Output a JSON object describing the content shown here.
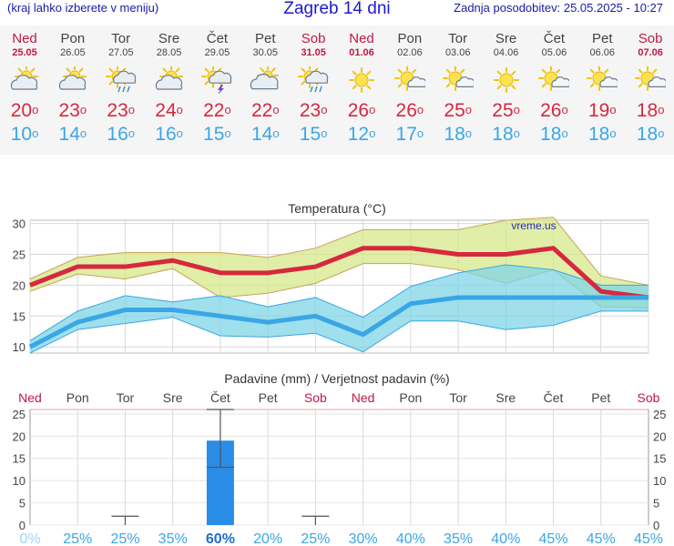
{
  "header": {
    "hint": "(kraj lahko izberete v meniju)",
    "title": "Zagreb 14 dni",
    "updated": "Zadnja posodobitev: 25.05.2025 - 10:27"
  },
  "days": [
    {
      "name": "Ned",
      "date": "25.05",
      "weekend": true,
      "icon": "sun-cloud-icon",
      "tmax": "20",
      "tmin": "10"
    },
    {
      "name": "Pon",
      "date": "26.05",
      "weekend": false,
      "icon": "sun-cloud-icon",
      "tmax": "23",
      "tmin": "14"
    },
    {
      "name": "Tor",
      "date": "27.05",
      "weekend": false,
      "icon": "sun-cloud-rain-icon",
      "tmax": "23",
      "tmin": "16"
    },
    {
      "name": "Sre",
      "date": "28.05",
      "weekend": false,
      "icon": "sun-cloud-icon",
      "tmax": "24",
      "tmin": "16"
    },
    {
      "name": "Čet",
      "date": "29.05",
      "weekend": false,
      "icon": "thunderstorm-icon",
      "tmax": "22",
      "tmin": "15"
    },
    {
      "name": "Pet",
      "date": "30.05",
      "weekend": false,
      "icon": "cloud-sun-icon",
      "tmax": "22",
      "tmin": "14"
    },
    {
      "name": "Sob",
      "date": "31.05",
      "weekend": true,
      "icon": "sun-cloud-rain-icon",
      "tmax": "23",
      "tmin": "15"
    },
    {
      "name": "Ned",
      "date": "01.06",
      "weekend": true,
      "icon": "sun-icon",
      "tmax": "26",
      "tmin": "12"
    },
    {
      "name": "Pon",
      "date": "02.06",
      "weekend": false,
      "icon": "sun-small-cloud-icon",
      "tmax": "26",
      "tmin": "17"
    },
    {
      "name": "Tor",
      "date": "03.06",
      "weekend": false,
      "icon": "sun-small-cloud-icon",
      "tmax": "25",
      "tmin": "18"
    },
    {
      "name": "Sre",
      "date": "04.06",
      "weekend": false,
      "icon": "sun-icon",
      "tmax": "25",
      "tmin": "18"
    },
    {
      "name": "Čet",
      "date": "05.06",
      "weekend": false,
      "icon": "sun-small-cloud-icon",
      "tmax": "26",
      "tmin": "18"
    },
    {
      "name": "Pet",
      "date": "06.06",
      "weekend": false,
      "icon": "sun-small-cloud-icon",
      "tmax": "19",
      "tmin": "18"
    },
    {
      "name": "Sob",
      "date": "07.06",
      "weekend": true,
      "icon": "sun-small-cloud-icon",
      "tmax": "18",
      "tmin": "18"
    }
  ],
  "degree_symbol": "o",
  "colors": {
    "weekend": "#c21845",
    "max": "#d6283e",
    "min": "#3aa6e6",
    "bar": "#2a8de8",
    "grid": "#cccccc"
  },
  "chart_data": [
    {
      "type": "area",
      "title": "Temperatura (°C)",
      "watermark": "vreme.us",
      "categories": [
        "Ned",
        "Pon",
        "Tor",
        "Sre",
        "Čet",
        "Pet",
        "Sob",
        "Ned",
        "Pon",
        "Tor",
        "Sre",
        "Čet",
        "Pet",
        "Sob"
      ],
      "ylim": [
        9,
        32
      ],
      "yticks": [
        10,
        15,
        20,
        25,
        30
      ],
      "grid": true,
      "series": [
        {
          "values": [
            20,
            23,
            23,
            24,
            22,
            22,
            23,
            26,
            26,
            25,
            25,
            26,
            19,
            18
          ]
        },
        {
          "values": [
            21,
            24.5,
            25.3,
            25.3,
            25.3,
            24.5,
            26,
            29,
            29,
            29,
            30.5,
            31,
            21.5,
            20
          ]
        },
        {
          "values": [
            19,
            21.8,
            21,
            22.7,
            18,
            18.7,
            20.3,
            23.5,
            23.5,
            22.5,
            20.3,
            22.5,
            16.5,
            16.3
          ]
        },
        {
          "values": [
            10,
            14,
            16,
            16,
            15,
            14,
            15,
            12,
            17,
            18,
            18,
            18,
            18,
            18
          ]
        },
        {
          "values": [
            11,
            15.8,
            18.3,
            17.3,
            18.3,
            16.5,
            18,
            14.8,
            19.8,
            22,
            23.3,
            22.5,
            20,
            20
          ]
        },
        {
          "values": [
            9,
            12.8,
            13.8,
            14.8,
            11.8,
            11.6,
            12.2,
            9.2,
            14.2,
            14.2,
            12.8,
            13.5,
            15.8,
            15.8
          ]
        }
      ]
    },
    {
      "type": "bar",
      "title": "Padavine (mm) / Verjetnost padavin (%)",
      "categories": [
        "Ned",
        "Pon",
        "Tor",
        "Sre",
        "Čet",
        "Pet",
        "Sob",
        "Ned",
        "Pon",
        "Tor",
        "Sre",
        "Čet",
        "Pet",
        "Sob"
      ],
      "weekend": [
        true,
        false,
        false,
        false,
        false,
        false,
        true,
        true,
        false,
        false,
        false,
        false,
        false,
        true
      ],
      "values": [
        0,
        0,
        0,
        0,
        19,
        0,
        0,
        0,
        0,
        0,
        0,
        0,
        0,
        0
      ],
      "error_high": [
        null,
        null,
        2,
        null,
        26,
        null,
        2,
        null,
        null,
        null,
        null,
        null,
        null,
        null
      ],
      "error_low": [
        null,
        null,
        0,
        null,
        13,
        null,
        0,
        null,
        null,
        null,
        null,
        null,
        null,
        null
      ],
      "probability": [
        "0%",
        "25%",
        "25%",
        "35%",
        "60%",
        "20%",
        "25%",
        "30%",
        "40%",
        "35%",
        "40%",
        "45%",
        "45%",
        "45%"
      ],
      "ylim": [
        0,
        26
      ],
      "yticks": [
        0,
        5,
        10,
        15,
        20,
        25
      ]
    }
  ]
}
